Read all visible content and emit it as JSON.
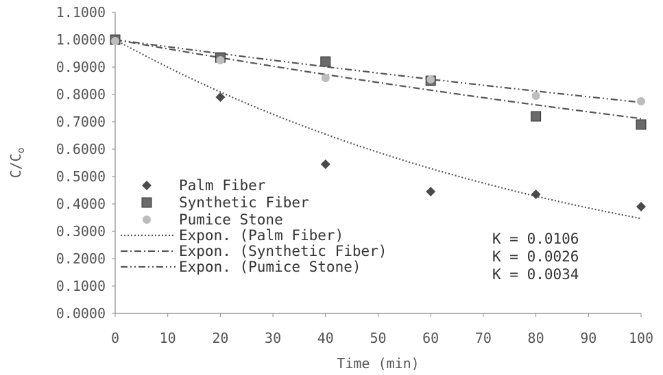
{
  "chart_data": {
    "type": "scatter",
    "xlabel": "Time (min)",
    "ylabel": "C/C",
    "ylabel_subscript": "o",
    "xlim": [
      0,
      100
    ],
    "ylim": [
      0,
      1.1
    ],
    "x_ticks": [
      "0",
      "10",
      "20",
      "30",
      "40",
      "50",
      "60",
      "70",
      "80",
      "90",
      "100"
    ],
    "y_ticks": [
      "0.0000",
      "0.1000",
      "0.2000",
      "0.3000",
      "0.4000",
      "0.5000",
      "0.6000",
      "0.7000",
      "0.8000",
      "0.9000",
      "1.0000",
      "1.1000"
    ],
    "x": [
      0,
      20,
      40,
      60,
      80,
      100
    ],
    "series": [
      {
        "name": "Palm Fiber",
        "marker": "diamond",
        "color": "#4a4a4a",
        "values": [
          1.0,
          0.79,
          0.545,
          0.445,
          0.435,
          0.39
        ]
      },
      {
        "name": "Synthetic Fiber",
        "marker": "square",
        "color": "#6a6a6a",
        "values": [
          1.0,
          0.935,
          0.92,
          0.85,
          0.72,
          0.69
        ]
      },
      {
        "name": "Pumice Stone",
        "marker": "dot",
        "color": "#bdbdbd",
        "values": [
          0.995,
          0.925,
          0.86,
          0.855,
          0.795,
          0.775
        ]
      }
    ],
    "trendlines": [
      {
        "name": "Expon. (Palm Fiber)",
        "style": "dotted",
        "k": 0.0106
      },
      {
        "name": "Expon. (Synthetic Fiber)",
        "style": "dash-dot",
        "k": 0.0034
      },
      {
        "name": "Expon. (Pumice Stone)",
        "style": "dash-dot-dot",
        "k": 0.0026
      }
    ],
    "annotations": [
      "K = 0.0106",
      "K = 0.0026",
      "K = 0.0034"
    ],
    "grid": false,
    "legend_position": "bottom-left"
  }
}
